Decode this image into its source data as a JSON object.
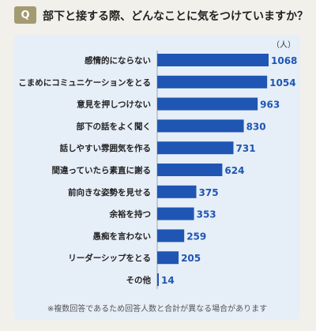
{
  "header": {
    "badge": "Q",
    "question": "部下と接する際、どんなことに気をつけていますか？"
  },
  "panel": {
    "unit": "（人）",
    "note": "※複数回答であるため回答人数と合計が異なる場合があります"
  },
  "colors": {
    "bar": "#1f56b3",
    "value": "#1f56b3",
    "badge": "#a39a72",
    "panel": "#e6eef8"
  },
  "chart_data": {
    "type": "bar",
    "orientation": "horizontal",
    "categories": [
      "感情的にならない",
      "こまめにコミュニケーションをとる",
      "意見を押しつけない",
      "部下の話をよく聞く",
      "話しやすい雰囲気を作る",
      "間違っていたら素直に謝る",
      "前向きな姿勢を見せる",
      "余裕を持つ",
      "愚痴を言わない",
      "リーダーシップをとる",
      "その他"
    ],
    "values": [
      1068,
      1054,
      963,
      830,
      731,
      624,
      375,
      353,
      259,
      205,
      14
    ],
    "unit": "（人）",
    "xlim": [
      0,
      1068
    ],
    "grid": false,
    "legend": "none"
  }
}
